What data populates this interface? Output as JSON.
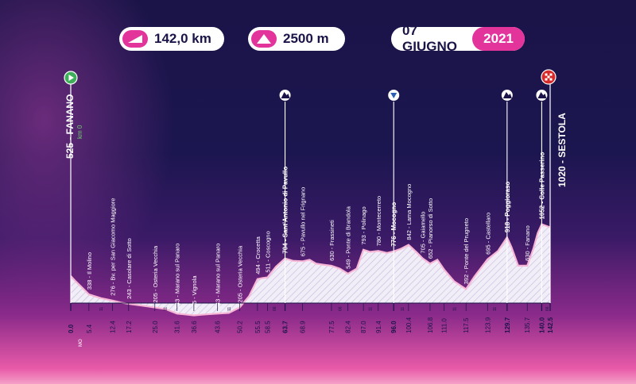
{
  "header": {
    "distance": "142,0 km",
    "elevation_gain": "2500 m",
    "date": "07 GIUGNO",
    "year": "2021"
  },
  "start": {
    "label": "525 - FANANO",
    "km_label": "km 0"
  },
  "finish": {
    "label": "1020 - SESTOLA"
  },
  "footer_mark": "MO",
  "colors": {
    "accent": "#e2349a",
    "background": "#1a1448",
    "profile_line": "#f2a6cc",
    "green": "#3fae5a",
    "blue": "#2d5fb4",
    "finish_red": "#d42a2a"
  },
  "chart_data": {
    "type": "area",
    "xlim": [
      0,
      142.5
    ],
    "ylim": [
      0,
      1100
    ],
    "profile": [
      [
        0,
        525
      ],
      [
        1.5,
        470
      ],
      [
        3,
        420
      ],
      [
        5.4,
        338
      ],
      [
        9,
        300
      ],
      [
        12.4,
        276
      ],
      [
        15,
        255
      ],
      [
        17.2,
        243
      ],
      [
        20,
        230
      ],
      [
        23,
        215
      ],
      [
        25,
        205
      ],
      [
        28,
        190
      ],
      [
        31.6,
        143
      ],
      [
        34,
        135
      ],
      [
        36.6,
        125
      ],
      [
        40,
        135
      ],
      [
        43.6,
        143
      ],
      [
        47,
        150
      ],
      [
        50.2,
        205
      ],
      [
        53,
        320
      ],
      [
        55.5,
        494
      ],
      [
        57,
        505
      ],
      [
        58.5,
        511
      ],
      [
        61,
        620
      ],
      [
        63.7,
        704
      ],
      [
        66,
        680
      ],
      [
        68.9,
        675
      ],
      [
        71,
        690
      ],
      [
        73,
        650
      ],
      [
        75,
        640
      ],
      [
        77.5,
        630
      ],
      [
        80,
        600
      ],
      [
        82.4,
        549
      ],
      [
        85,
        600
      ],
      [
        87,
        793
      ],
      [
        89,
        770
      ],
      [
        91.4,
        780
      ],
      [
        94,
        760
      ],
      [
        96,
        776
      ],
      [
        98,
        800
      ],
      [
        100.4,
        842
      ],
      [
        103,
        760
      ],
      [
        104.6,
        705
      ],
      [
        106.8,
        652
      ],
      [
        109,
        690
      ],
      [
        111,
        590
      ],
      [
        114,
        470
      ],
      [
        117.5,
        392
      ],
      [
        120,
        520
      ],
      [
        123.9,
        695
      ],
      [
        127,
        780
      ],
      [
        129.7,
        918
      ],
      [
        131,
        820
      ],
      [
        133,
        630
      ],
      [
        135.7,
        630
      ],
      [
        137.5,
        800
      ],
      [
        138.8,
        960
      ],
      [
        140,
        1052
      ],
      [
        142.5,
        1020
      ]
    ],
    "waypoints": [
      {
        "km": 5.4,
        "label": "338 - Il Molino"
      },
      {
        "km": 12.4,
        "label": "276 - Bv. per San Giacomo Maggiore"
      },
      {
        "km": 17.2,
        "label": "243 - Casolare di Sotto"
      },
      {
        "km": 25.0,
        "label": "205 - Osteria Vecchia"
      },
      {
        "km": 31.6,
        "label": "143 - Marano sul Panaro"
      },
      {
        "km": 36.6,
        "label": "125 - Vignola"
      },
      {
        "km": 43.6,
        "label": "143 - Marano sul Panaro"
      },
      {
        "km": 50.2,
        "label": "205 - Osteria Vecchia"
      },
      {
        "km": 55.5,
        "label": "494 - Crocetta"
      },
      {
        "km": 58.5,
        "label": "511 - Coscogno"
      },
      {
        "km": 63.7,
        "label": "704 - Sant'Antonio di Pavullo",
        "bold": true,
        "icon": "kom-icon"
      },
      {
        "km": 68.9,
        "label": "675 - Pavullo nel Frignano"
      },
      {
        "km": 77.5,
        "label": "630 - Frassineti"
      },
      {
        "km": 82.4,
        "label": "549 - Ponte di Brandola"
      },
      {
        "km": 87.0,
        "label": "793 - Polinago"
      },
      {
        "km": 91.4,
        "label": "780 - Montecerreto"
      },
      {
        "km": 96.0,
        "label": "776 - Mocogno",
        "bold": true,
        "icon": "feed-icon"
      },
      {
        "km": 100.4,
        "label": "842 - Lama Mocogno"
      },
      {
        "km": 104.6,
        "label": "705 - Gaiamello"
      },
      {
        "km": 106.8,
        "label": "652 - Pianorso di Sotto"
      },
      {
        "km": 117.5,
        "label": "392 - Ponte del Prugneto"
      },
      {
        "km": 123.9,
        "label": "695 - Castellaro"
      },
      {
        "km": 129.7,
        "label": "918 - Poggioraso",
        "bold": true,
        "icon": "kom-icon"
      },
      {
        "km": 135.7,
        "label": "630 - Fanano"
      },
      {
        "km": 140.0,
        "label": "1052 - Colle Passerino",
        "bold": true,
        "icon": "kom-icon"
      }
    ],
    "km_ticks": [
      "0.0",
      "5.4",
      "12.4",
      "17.2",
      "25.0",
      "31.6",
      "36.6",
      "43.6",
      "50.2",
      "55.5",
      "58.5",
      "63.7",
      "68.9",
      "77.5",
      "82.4",
      "87.0",
      "91.4",
      "96.0",
      "100.4",
      "106.8",
      "111.0",
      "117.5",
      "123.9",
      "129.7",
      "135.7",
      "140.0",
      "142.5"
    ],
    "bold_ticks": [
      "0.0",
      "63.7",
      "96.0",
      "129.7",
      "140.0",
      "142.5"
    ],
    "minor_ticks": [
      {
        "km": 9.0,
        "label": "11"
      },
      {
        "km": 28.0,
        "label": "11"
      },
      {
        "km": 47.0,
        "label": "11"
      },
      {
        "km": 60.5,
        "label": "66"
      },
      {
        "km": 80.0,
        "label": "66"
      },
      {
        "km": 89.0,
        "label": "11"
      },
      {
        "km": 98.5,
        "label": "11"
      },
      {
        "km": 114.0,
        "label": "11"
      },
      {
        "km": 126.0,
        "label": "11"
      },
      {
        "km": 141.5,
        "label": "66"
      }
    ]
  }
}
